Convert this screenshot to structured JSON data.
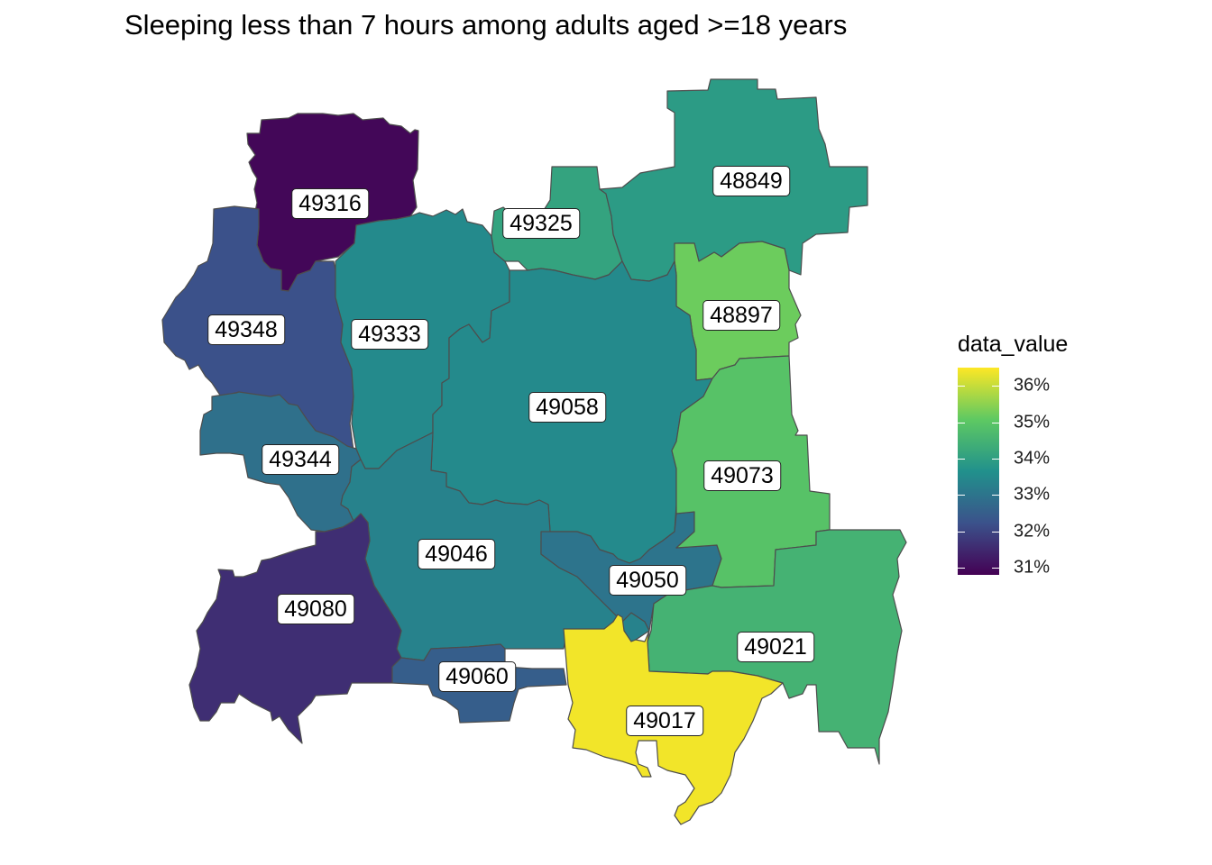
{
  "title": "Sleeping less than 7 hours among adults aged >=18 years",
  "legend": {
    "title": "data_value",
    "ticks": [
      "36%",
      "35%",
      "34%",
      "33%",
      "32%",
      "31%"
    ],
    "tick_values": [
      36,
      35,
      34,
      33,
      32,
      31
    ],
    "range": [
      30.8,
      36.5
    ],
    "colors": [
      "#440154",
      "#3b528b",
      "#21918c",
      "#5ec962",
      "#fde725"
    ]
  },
  "map_data": {
    "type": "choropleth",
    "value_field": "data_value",
    "unit": "%",
    "regions": [
      {
        "zip": "49316",
        "value": 30.9
      },
      {
        "zip": "49325",
        "value": 34.1
      },
      {
        "zip": "48849",
        "value": 33.9
      },
      {
        "zip": "48897",
        "value": 35.2
      },
      {
        "zip": "49348",
        "value": 32.2
      },
      {
        "zip": "49333",
        "value": 33.5
      },
      {
        "zip": "49058",
        "value": 33.5
      },
      {
        "zip": "49073",
        "value": 34.9
      },
      {
        "zip": "49344",
        "value": 32.9
      },
      {
        "zip": "49046",
        "value": 33.3
      },
      {
        "zip": "49050",
        "value": 33.0
      },
      {
        "zip": "49080",
        "value": 31.6
      },
      {
        "zip": "49021",
        "value": 34.5
      },
      {
        "zip": "49060",
        "value": 32.5
      },
      {
        "zip": "49017",
        "value": 36.4
      }
    ]
  }
}
